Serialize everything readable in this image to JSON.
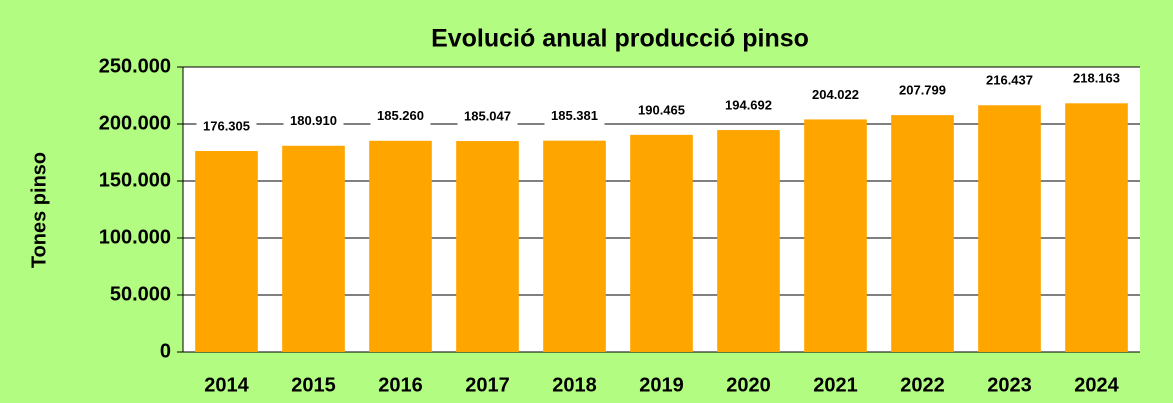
{
  "chart_data": {
    "type": "bar",
    "title": "Evolució anual producció pinso",
    "y_label": "Tones pinso",
    "categories": [
      "2014",
      "2015",
      "2016",
      "2017",
      "2018",
      "2019",
      "2020",
      "2021",
      "2022",
      "2023",
      "2024"
    ],
    "values": [
      176305,
      180910,
      185260,
      185047,
      185381,
      190465,
      194692,
      204022,
      207799,
      216437,
      218163
    ],
    "value_labels": [
      "176.305",
      "180.910",
      "185.260",
      "185.047",
      "185.381",
      "190.465",
      "194.692",
      "204.022",
      "207.799",
      "216.437",
      "218.163"
    ],
    "color": "#ffa500",
    "ylim": [
      0,
      250000
    ],
    "yticks": [
      0,
      {
        "value": 50000,
        "label": "50.000"
      },
      {
        "value": 100000,
        "label": "100.000"
      },
      {
        "value": 150000,
        "label": "150.000"
      },
      {
        "value": 200000,
        "label": "200.000"
      },
      {
        "value": 250000,
        "label": "250.000"
      }
    ],
    "grid": true
  }
}
